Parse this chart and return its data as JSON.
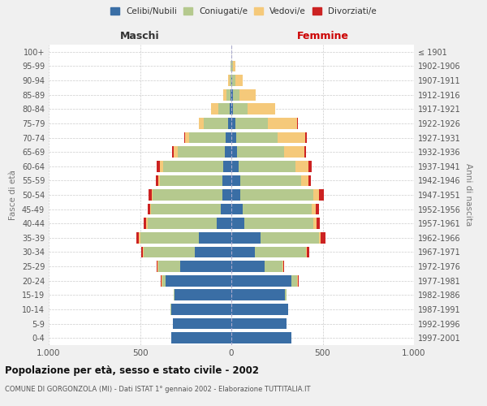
{
  "age_groups": [
    "0-4",
    "5-9",
    "10-14",
    "15-19",
    "20-24",
    "25-29",
    "30-34",
    "35-39",
    "40-44",
    "45-49",
    "50-54",
    "55-59",
    "60-64",
    "65-69",
    "70-74",
    "75-79",
    "80-84",
    "85-89",
    "90-94",
    "95-99",
    "100+"
  ],
  "birth_years": [
    "1997-2001",
    "1992-1996",
    "1987-1991",
    "1982-1986",
    "1977-1981",
    "1972-1976",
    "1967-1971",
    "1962-1966",
    "1957-1961",
    "1952-1956",
    "1947-1951",
    "1942-1946",
    "1937-1941",
    "1932-1936",
    "1927-1931",
    "1922-1926",
    "1917-1921",
    "1912-1916",
    "1907-1911",
    "1902-1906",
    "≤ 1901"
  ],
  "maschi": {
    "celibi": [
      330,
      320,
      330,
      310,
      360,
      280,
      200,
      180,
      80,
      60,
      50,
      50,
      45,
      35,
      30,
      20,
      10,
      5,
      2,
      0,
      0
    ],
    "coniugati": [
      0,
      0,
      2,
      5,
      20,
      120,
      280,
      320,
      380,
      380,
      380,
      340,
      330,
      260,
      200,
      130,
      60,
      20,
      8,
      3,
      0
    ],
    "vedovi": [
      0,
      0,
      0,
      0,
      3,
      5,
      5,
      5,
      5,
      5,
      5,
      10,
      15,
      20,
      25,
      30,
      40,
      20,
      10,
      2,
      0
    ],
    "divorziati": [
      0,
      0,
      0,
      0,
      2,
      5,
      10,
      15,
      15,
      15,
      20,
      15,
      20,
      10,
      5,
      0,
      0,
      0,
      0,
      0,
      0
    ]
  },
  "femmine": {
    "nubili": [
      330,
      300,
      310,
      295,
      330,
      180,
      130,
      160,
      70,
      60,
      50,
      50,
      40,
      30,
      25,
      20,
      10,
      8,
      5,
      2,
      0
    ],
    "coniugate": [
      0,
      0,
      2,
      5,
      30,
      100,
      280,
      320,
      380,
      380,
      400,
      330,
      310,
      260,
      230,
      180,
      80,
      35,
      15,
      5,
      0
    ],
    "vedove": [
      0,
      0,
      0,
      0,
      5,
      5,
      5,
      10,
      15,
      20,
      30,
      40,
      70,
      110,
      150,
      160,
      150,
      90,
      40,
      15,
      0
    ],
    "divorziate": [
      0,
      0,
      0,
      0,
      2,
      5,
      10,
      25,
      20,
      20,
      25,
      15,
      20,
      10,
      10,
      5,
      2,
      0,
      0,
      0,
      0
    ]
  },
  "colors": {
    "celibi": "#3a6ea5",
    "coniugati": "#b5c98e",
    "vedovi": "#f5c97a",
    "divorziati": "#cc2222"
  },
  "xlim": [
    -1000,
    1000
  ],
  "xticks": [
    -1000,
    -500,
    0,
    500,
    1000
  ],
  "xticklabels": [
    "1.000",
    "500",
    "0",
    "500",
    "1.000"
  ],
  "title": "Popolazione per età, sesso e stato civile - 2002",
  "subtitle": "COMUNE DI GORGONZOLA (MI) - Dati ISTAT 1° gennaio 2002 - Elaborazione TUTTITALIA.IT",
  "ylabel_left": "Fasce di età",
  "ylabel_right": "Anni di nascita",
  "maschi_label": "Maschi",
  "femmine_label": "Femmine",
  "legend_labels": [
    "Celibi/Nubili",
    "Coniugati/e",
    "Vedovi/e",
    "Divorziati/e"
  ],
  "bg_color": "#f0f0f0",
  "plot_bg": "#ffffff"
}
